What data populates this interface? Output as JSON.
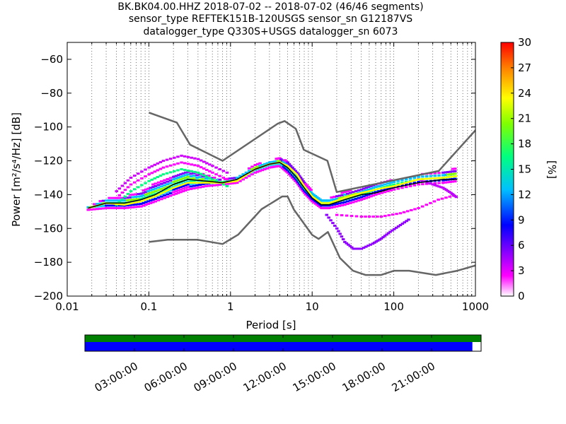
{
  "title_lines": [
    "BK.BK04.00.HHZ   2018-07-02 -- 2018-07-02  (46/46 segments)",
    "sensor_type REFTEK151B-120USGS sensor_sn G12187VS",
    "datalogger_type Q330S+USGS datalogger_sn 6073"
  ],
  "chart_data": {
    "type": "heatmap",
    "xlabel": "Period [s]",
    "ylabel": "Power [m²/s⁴/Hz] [dB]",
    "x_scale": "log",
    "xlim": [
      0.01,
      1000
    ],
    "ylim": [
      -200,
      -50
    ],
    "x_ticks": [
      0.01,
      0.1,
      1,
      10,
      100,
      1000
    ],
    "x_tick_labels": [
      "0.01",
      "0.1",
      "1",
      "10",
      "100",
      "1000"
    ],
    "y_ticks": [
      -200,
      -180,
      -160,
      -140,
      -120,
      -100,
      -80,
      -60
    ],
    "y_tick_labels": [
      "−200",
      "−180",
      "−160",
      "−140",
      "−120",
      "−100",
      "−80",
      "−60"
    ],
    "grid": "dotted vertical",
    "colorbar": {
      "label": "[%]",
      "range": [
        0,
        30
      ],
      "ticks": [
        0,
        3,
        6,
        9,
        12,
        15,
        18,
        21,
        24,
        27,
        30
      ],
      "colormap": [
        "#ffffff",
        "#ff00ff",
        "#8000ff",
        "#0000ff",
        "#00c0ff",
        "#00ff80",
        "#80ff00",
        "#ffff00",
        "#ff8000",
        "#ff0000"
      ]
    },
    "noise_models": [
      {
        "role": "NHNM",
        "color": "#666666",
        "x": [
          0.1,
          0.22,
          0.32,
          0.8,
          3.8,
          4.6,
          6.3,
          7.9,
          15.4,
          20,
          354.8,
          10000
        ],
        "y": [
          -91.5,
          -97.4,
          -110.5,
          -120,
          -98,
          -96.5,
          -101,
          -113.5,
          -120,
          -138.5,
          -126,
          -48.5
        ]
      },
      {
        "role": "NLNM",
        "color": "#666666",
        "x": [
          0.1,
          0.17,
          0.4,
          0.8,
          1.24,
          2.4,
          4.3,
          5,
          6,
          10,
          12,
          15.6,
          21.9,
          31.6,
          45,
          70,
          101,
          154,
          328,
          600,
          10000
        ],
        "y": [
          -168,
          -166.7,
          -166.7,
          -169.2,
          -163.7,
          -148.6,
          -141.1,
          -141.1,
          -149,
          -163.8,
          -166.2,
          -162.1,
          -177.5,
          -185,
          -187.5,
          -187.5,
          -185,
          -185,
          -187.5,
          -185,
          -168
        ]
      }
    ],
    "median_curve": {
      "color": "#000000",
      "x": [
        0.018,
        0.03,
        0.05,
        0.08,
        0.12,
        0.2,
        0.3,
        0.5,
        0.8,
        1.2,
        2,
        3,
        4,
        5,
        6.5,
        8,
        10,
        13,
        16,
        25,
        40,
        60,
        100,
        200,
        400,
        600
      ],
      "y": [
        -148,
        -145,
        -145,
        -143,
        -140,
        -134,
        -131,
        -132,
        -133,
        -131,
        -125,
        -122,
        -121,
        -124,
        -130,
        -136,
        -142,
        -146,
        -146,
        -143,
        -140,
        -139,
        -136,
        -133,
        -131,
        -131
      ]
    },
    "mean_curve": {
      "color": "#ffff00",
      "x": [
        0.018,
        0.03,
        0.05,
        0.08,
        0.12,
        0.2,
        0.3,
        0.5,
        0.8,
        1.2,
        2,
        3,
        4,
        5,
        6.5,
        8,
        10,
        13,
        16,
        25,
        40,
        60,
        100,
        200,
        400,
        600
      ],
      "y": [
        -148,
        -145,
        -146,
        -144,
        -141,
        -136,
        -133,
        -133,
        -133,
        -132,
        -125,
        -122,
        -121,
        -123,
        -128,
        -135,
        -141,
        -145,
        -145,
        -142,
        -139,
        -137,
        -135,
        -131,
        -130,
        -129
      ]
    },
    "density_clusters": [
      {
        "name": "main_band",
        "color": "#00c8ff",
        "x": [
          0.018,
          0.03,
          0.05,
          0.08,
          0.12,
          0.2,
          0.3,
          0.5,
          0.8,
          1.2,
          2,
          3,
          4,
          5,
          6.5,
          8,
          10,
          13,
          16,
          25,
          40,
          60,
          100,
          200,
          400,
          600
        ],
        "y_low": [
          -149,
          -148,
          -148,
          -147,
          -144,
          -140,
          -137,
          -135,
          -134,
          -133,
          -127,
          -124,
          -123,
          -127,
          -133,
          -139,
          -144,
          -148,
          -148,
          -146,
          -143,
          -140,
          -137,
          -134,
          -133,
          -132
        ],
        "y_high": [
          -147,
          -142,
          -141,
          -138,
          -133,
          -128,
          -125,
          -128,
          -131,
          -129,
          -122,
          -120,
          -118,
          -120,
          -126,
          -132,
          -138,
          -142,
          -142,
          -138,
          -136,
          -133,
          -131,
          -128,
          -126,
          -124
        ]
      },
      {
        "name": "upper_band",
        "color": "#d000ff",
        "x": [
          0.04,
          0.06,
          0.1,
          0.15,
          0.25,
          0.4,
          0.6,
          1
        ],
        "y": [
          -138,
          -130,
          -124,
          -120,
          -117,
          -119,
          -123,
          -128
        ]
      },
      {
        "name": "lower_dip",
        "color": "#9000ff",
        "x": [
          15,
          20,
          25,
          32,
          40,
          55,
          70,
          90,
          120,
          160
        ],
        "y": [
          -152,
          -160,
          -168,
          -172,
          -172,
          -169,
          -166,
          -162,
          -158,
          -154
        ]
      },
      {
        "name": "lower_band",
        "color": "#ff00ff",
        "x": [
          20,
          40,
          70,
          120,
          200,
          350,
          600
        ],
        "y": [
          -152,
          -153,
          -153,
          -151,
          -148,
          -143,
          -140
        ]
      },
      {
        "name": "long_period_lines",
        "color": "#c000ff",
        "x": [
          200,
          300,
          400,
          500,
          600
        ],
        "y": [
          -131,
          -134,
          -136,
          -139,
          -142
        ]
      }
    ]
  },
  "timeline": {
    "tick_labels": [
      "03:00:00",
      "06:00:00",
      "09:00:00",
      "12:00:00",
      "15:00:00",
      "18:00:00",
      "21:00:00"
    ],
    "hours": [
      3,
      6,
      9,
      12,
      15,
      18,
      21
    ],
    "span_hours": 24,
    "coverage_top_color": "#008000",
    "coverage_bottom_color": "#0000ff",
    "coverage_bottom_fraction": 0.978
  }
}
